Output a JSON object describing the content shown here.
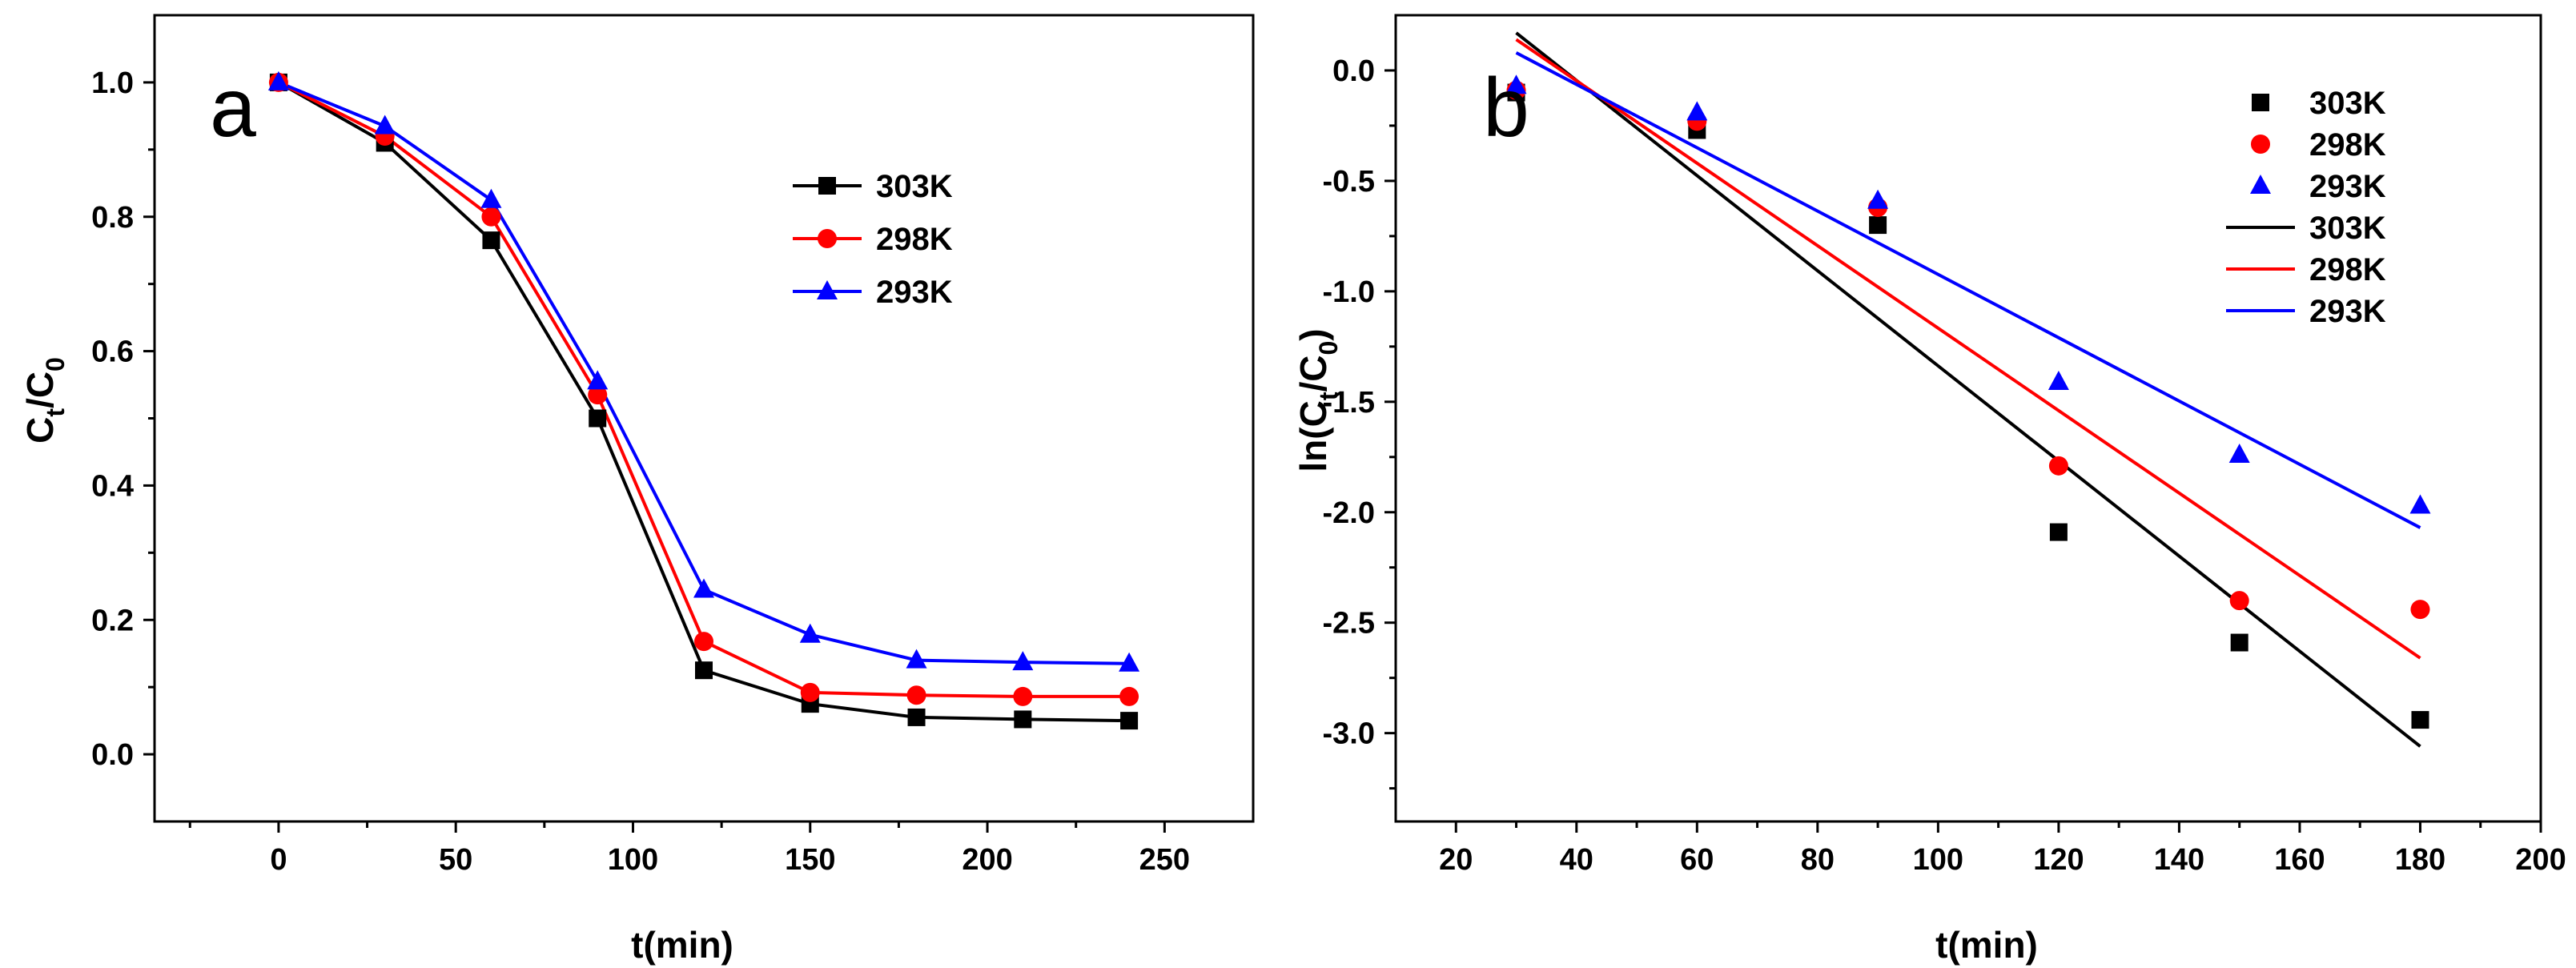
{
  "chart_data": [
    {
      "panel": "a",
      "type": "line",
      "panel_label": "a",
      "xlabel": "t(min)",
      "ylabel": "C_t/C_0",
      "xlim": [
        -35,
        275
      ],
      "ylim": [
        -0.1,
        1.1
      ],
      "x_ticks": [
        0,
        50,
        100,
        150,
        200,
        250
      ],
      "x_tick_labels": [
        "0",
        "50",
        "100",
        "150",
        "200",
        "250"
      ],
      "y_ticks": [
        0.0,
        0.2,
        0.4,
        0.6,
        0.8,
        1.0
      ],
      "y_tick_labels": [
        "0.0",
        "0.2",
        "0.4",
        "0.6",
        "0.8",
        "1.0"
      ],
      "grid": false,
      "legend_position": "upper-right",
      "x": [
        0,
        30,
        60,
        90,
        120,
        150,
        180,
        210,
        240
      ],
      "series": [
        {
          "name": "303K",
          "color": "#000000",
          "marker": "square",
          "values": [
            1.0,
            0.91,
            0.765,
            0.5,
            0.125,
            0.075,
            0.055,
            0.052,
            0.05
          ]
        },
        {
          "name": "298K",
          "color": "#ff0000",
          "marker": "circle",
          "values": [
            1.0,
            0.92,
            0.8,
            0.535,
            0.168,
            0.092,
            0.088,
            0.086,
            0.086
          ]
        },
        {
          "name": "293K",
          "color": "#0000ff",
          "marker": "triangle",
          "values": [
            1.0,
            0.935,
            0.825,
            0.555,
            0.245,
            0.178,
            0.14,
            0.137,
            0.135
          ]
        }
      ]
    },
    {
      "panel": "b",
      "type": "scatter",
      "panel_label": "b",
      "xlabel": "t(min)",
      "ylabel": "ln(C_t/C_0)",
      "xlim": [
        10,
        200
      ],
      "ylim": [
        -3.4,
        0.25
      ],
      "x_ticks": [
        20,
        40,
        60,
        80,
        100,
        120,
        140,
        160,
        180,
        200
      ],
      "x_tick_labels": [
        "20",
        "40",
        "60",
        "80",
        "100",
        "120",
        "140",
        "160",
        "180",
        "200"
      ],
      "y_ticks": [
        0.0,
        -0.5,
        -1.0,
        -1.5,
        -2.0,
        -2.5,
        -3.0
      ],
      "y_tick_labels": [
        "0.0",
        "-0.5",
        "-1.0",
        "-1.5",
        "-2.0",
        "-2.5",
        "-3.0"
      ],
      "grid": false,
      "legend_position": "upper-right",
      "x": [
        30,
        60,
        90,
        120,
        150,
        180
      ],
      "series": [
        {
          "name": "303K",
          "color": "#000000",
          "marker": "square",
          "values": [
            -0.1,
            -0.27,
            -0.7,
            -2.09,
            -2.59,
            -2.94
          ]
        },
        {
          "name": "298K",
          "color": "#ff0000",
          "marker": "circle",
          "values": [
            -0.09,
            -0.23,
            -0.62,
            -1.79,
            -2.4,
            -2.44
          ]
        },
        {
          "name": "293K",
          "color": "#0000ff",
          "marker": "triangle",
          "values": [
            -0.07,
            -0.19,
            -0.59,
            -1.41,
            -1.74,
            -1.97
          ]
        }
      ],
      "fits": [
        {
          "name": "303K",
          "color": "#000000",
          "x": [
            30,
            180
          ],
          "y": [
            0.17,
            -3.06
          ]
        },
        {
          "name": "298K",
          "color": "#ff0000",
          "x": [
            30,
            180
          ],
          "y": [
            0.14,
            -2.66
          ]
        },
        {
          "name": "293K",
          "color": "#0000ff",
          "x": [
            30,
            180
          ],
          "y": [
            0.08,
            -2.07
          ]
        }
      ]
    }
  ]
}
